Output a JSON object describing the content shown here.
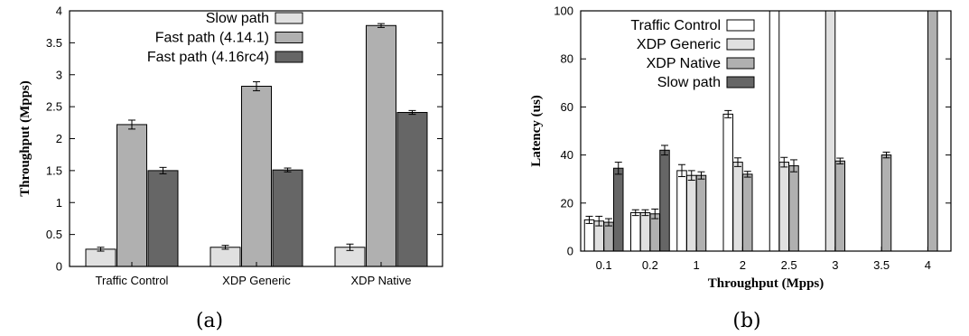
{
  "chart_data": [
    {
      "type": "bar",
      "caption": "(a)",
      "ylabel": "Throughput (Mpps)",
      "xlabel": "",
      "ylim": [
        0,
        4
      ],
      "yticks": [
        "0",
        "0.5",
        "1",
        "1.5",
        "2",
        "2.5",
        "3",
        "3.5",
        "4"
      ],
      "categories": [
        "Traffic Control",
        "XDP Generic",
        "XDP Native"
      ],
      "legend_position": "top-left",
      "series": [
        {
          "name": "Slow path",
          "color": "#e0e0e0",
          "values": [
            0.27,
            0.3,
            0.3
          ],
          "errors": [
            0.03,
            0.03,
            0.05
          ]
        },
        {
          "name": "Fast path (4.14.1)",
          "color": "#b0b0b0",
          "values": [
            2.22,
            2.82,
            3.77
          ],
          "errors": [
            0.07,
            0.07,
            0.03
          ]
        },
        {
          "name": "Fast path (4.16rc4)",
          "color": "#666666",
          "values": [
            1.5,
            1.51,
            2.41
          ],
          "errors": [
            0.05,
            0.03,
            0.03
          ]
        }
      ]
    },
    {
      "type": "bar",
      "caption": "(b)",
      "ylabel": "Latency (us)",
      "xlabel": "Throughput (Mpps)",
      "ylim": [
        0,
        100
      ],
      "yticks": [
        "0",
        "20",
        "40",
        "60",
        "80",
        "100"
      ],
      "categories": [
        "0.1",
        "0.2",
        "1",
        "2",
        "2.5",
        "3",
        "3.5",
        "4"
      ],
      "legend_position": "top-left",
      "series": [
        {
          "name": "Traffic Control",
          "color": "#ffffff",
          "values": [
            13,
            16,
            33.5,
            57,
            100,
            null,
            null,
            null
          ],
          "errors": [
            1.5,
            1.2,
            2.5,
            1.5,
            0,
            null,
            null,
            null
          ]
        },
        {
          "name": "XDP Generic",
          "color": "#e0e0e0",
          "values": [
            12.5,
            16,
            31.5,
            37,
            37,
            100,
            null,
            null
          ],
          "errors": [
            2,
            1.2,
            2,
            1.8,
            2,
            0,
            null,
            null
          ]
        },
        {
          "name": "XDP Native",
          "color": "#b0b0b0",
          "values": [
            12,
            15.5,
            31.5,
            32,
            35.5,
            37.5,
            40,
            100
          ],
          "errors": [
            1.5,
            2,
            1.5,
            1.2,
            2.5,
            1.2,
            1.2,
            0
          ]
        },
        {
          "name": "Slow path",
          "color": "#666666",
          "values": [
            34.5,
            42,
            null,
            null,
            null,
            null,
            null,
            null
          ],
          "errors": [
            2.5,
            2,
            null,
            null,
            null,
            null,
            null,
            null
          ]
        }
      ]
    }
  ]
}
